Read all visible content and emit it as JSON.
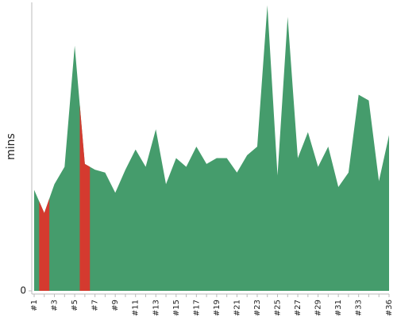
{
  "chart_data": {
    "type": "area",
    "y_label": "mins",
    "categories": [
      "#1",
      null,
      "#3",
      null,
      "#5",
      null,
      "#7",
      null,
      "#9",
      null,
      "#11",
      null,
      "#13",
      null,
      "#15",
      null,
      "#17",
      null,
      "#19",
      null,
      "#21",
      null,
      "#23",
      null,
      "#25",
      null,
      "#27",
      null,
      "#29",
      null,
      "#31",
      null,
      "#33",
      null,
      null,
      "#36"
    ],
    "series": [
      {
        "color": "#459c6c",
        "values": [
          35,
          27,
          37,
          43,
          85,
          44,
          42,
          41,
          34,
          42,
          49,
          43,
          56,
          37,
          46,
          43,
          50,
          44,
          46,
          46,
          41,
          47,
          50,
          99,
          40,
          95,
          46,
          55,
          43,
          50,
          36,
          41,
          68,
          66,
          38,
          54
        ]
      }
    ],
    "highlight_indices": [
      1,
      5
    ],
    "highlight_color": "#d43a2f",
    "ylim": [
      0,
      100
    ],
    "yticks": [
      0
    ]
  }
}
